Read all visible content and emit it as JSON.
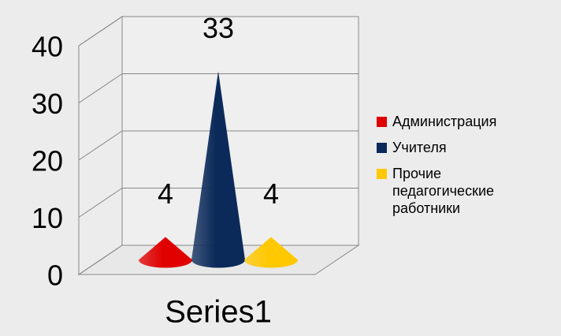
{
  "chart_data": {
    "type": "cone3d",
    "categories": [
      "Series1"
    ],
    "series": [
      {
        "name": "Администрация",
        "color": "#e00000",
        "values": [
          4
        ]
      },
      {
        "name": "Учителя",
        "color": "#0b2a5a",
        "values": [
          33
        ]
      },
      {
        "name": "Прочие педагогические работники",
        "color": "#ffc800",
        "values": [
          4
        ]
      }
    ],
    "ylim": [
      0,
      40
    ],
    "yticks": [
      0,
      10,
      20,
      30,
      40
    ],
    "grid": true,
    "legend": "right"
  }
}
